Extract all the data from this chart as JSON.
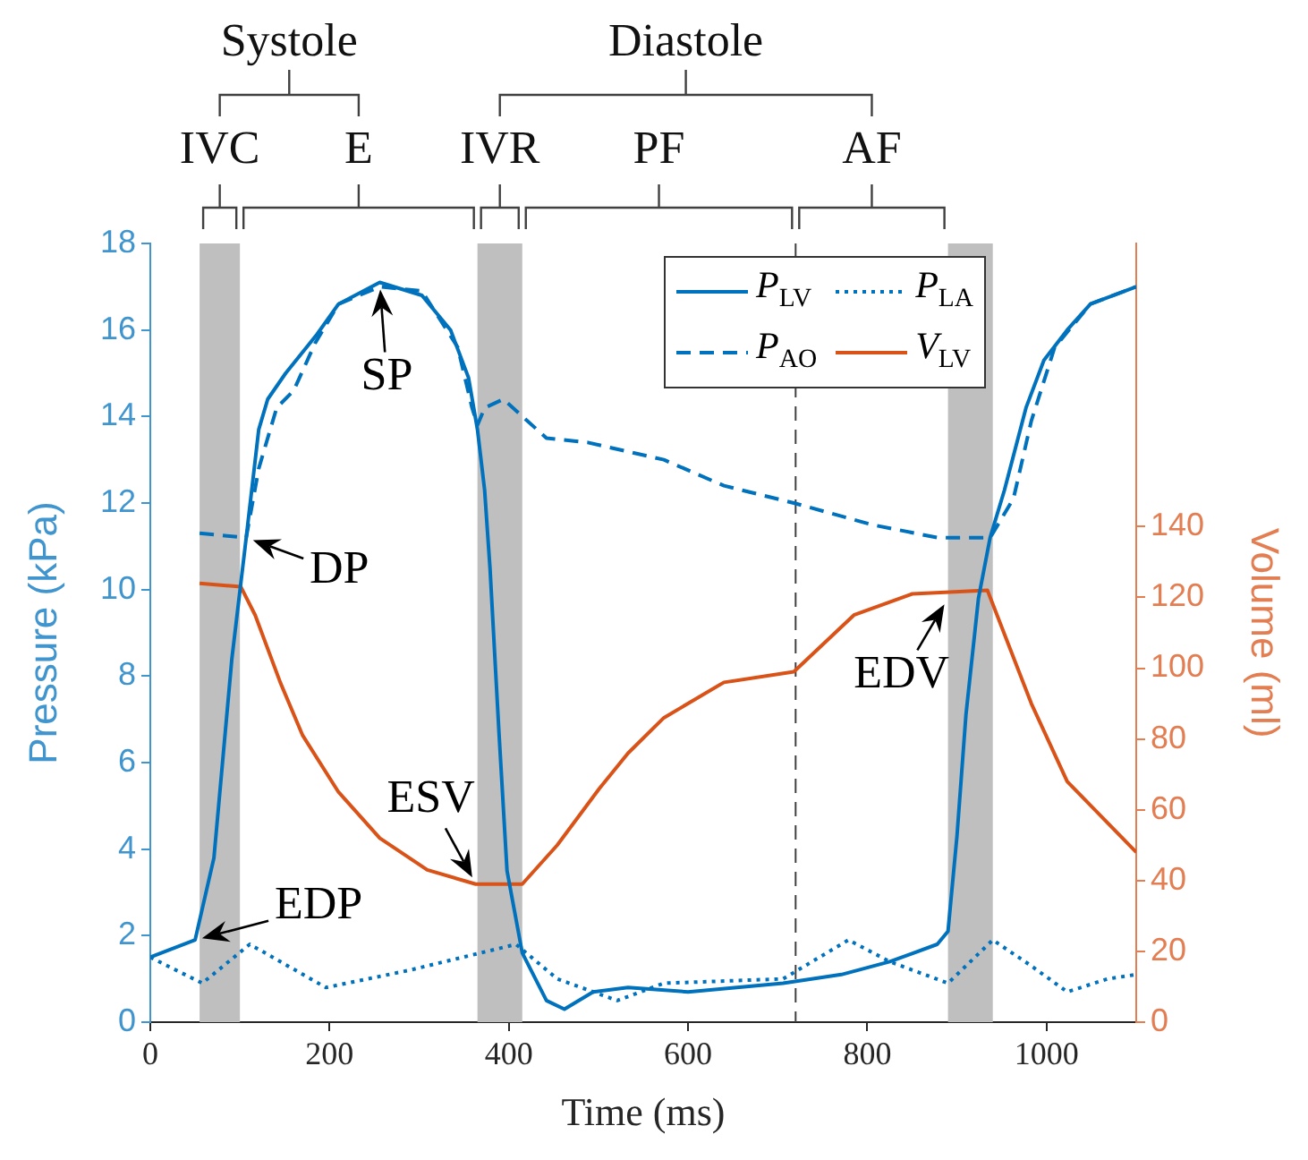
{
  "chart_data": {
    "type": "line",
    "xlabel": "Time (ms)",
    "ylabel": "Pressure (kPa)",
    "y2label": "Volume (ml)",
    "xlim": [
      0,
      1100
    ],
    "xticks": [
      0,
      200,
      400,
      600,
      800,
      1000
    ],
    "ylim": [
      0,
      18
    ],
    "yticks": [
      0,
      2,
      4,
      6,
      8,
      10,
      12,
      14,
      16,
      18
    ],
    "y2lim": [
      0,
      220
    ],
    "y2ticks": [
      0,
      20,
      40,
      60,
      80,
      100,
      120,
      140
    ],
    "legend": "top right",
    "series": [
      {
        "name": "P$_{LV}$",
        "color": "#0072bd",
        "line_style": "solid",
        "x": [
          0,
          50,
          71,
          91,
          107,
          121,
          131,
          151,
          186,
          210,
          256,
          303,
          335,
          355,
          365,
          373,
          379,
          389,
          398,
          415,
          442,
          462,
          494,
          533,
          600,
          706,
          771,
          825,
          878,
          890,
          900,
          910,
          924,
          937,
          953,
          977,
          997,
          1023,
          1049,
          1100
        ],
        "values": [
          1.5,
          1.9,
          3.8,
          8.4,
          11.2,
          13.7,
          14.4,
          15.0,
          15.9,
          16.6,
          17.1,
          16.8,
          16.0,
          14.9,
          13.7,
          12.3,
          10.5,
          6.7,
          3.5,
          1.6,
          0.5,
          0.3,
          0.7,
          0.8,
          0.7,
          0.9,
          1.1,
          1.4,
          1.8,
          2.1,
          4.3,
          7.1,
          9.8,
          11.2,
          12.3,
          14.2,
          15.3,
          16.0,
          16.6,
          17.0
        ]
      },
      {
        "name": "P$_{LA}$",
        "color": "#0072bd",
        "line_style": "dotted",
        "x": [
          0,
          58,
          111,
          145,
          196,
          289,
          408,
          454,
          521,
          573,
          706,
          779,
          825,
          890,
          940,
          983,
          1023,
          1068,
          1100
        ],
        "values": [
          1.5,
          0.9,
          1.8,
          1.4,
          0.8,
          1.2,
          1.8,
          1.0,
          0.5,
          0.9,
          1.0,
          1.9,
          1.4,
          0.9,
          1.9,
          1.3,
          0.7,
          1.0,
          1.1
        ]
      },
      {
        "name": "P$_{AO}$",
        "color": "#0072bd",
        "line_style": "dashed",
        "x": [
          55,
          107,
          121,
          141,
          160,
          184,
          210,
          256,
          303,
          343,
          359,
          365,
          373,
          394,
          442,
          488,
          573,
          640,
          718,
          805,
          878,
          937,
          963,
          983,
          1009,
          1049,
          1100
        ],
        "values": [
          11.3,
          11.2,
          12.8,
          14.2,
          14.6,
          15.7,
          16.6,
          17.0,
          16.9,
          15.6,
          14.2,
          13.8,
          14.2,
          14.4,
          13.5,
          13.4,
          13.0,
          12.4,
          12.0,
          11.5,
          11.2,
          11.2,
          12.1,
          13.9,
          15.6,
          16.6,
          17.0
        ]
      },
      {
        "name": "V$_{LV}$",
        "color": "#d95319",
        "line_style": "solid",
        "axis": "y2",
        "x": [
          55,
          101,
          117,
          145,
          170,
          210,
          256,
          309,
          363,
          415,
          454,
          501,
          533,
          573,
          640,
          718,
          785,
          850,
          934,
          983,
          1023,
          1100
        ],
        "values": [
          124,
          123,
          115,
          96,
          81,
          65,
          52,
          43,
          39,
          39,
          50,
          66,
          76,
          86,
          96,
          99,
          115,
          121,
          122,
          90,
          68,
          48
        ]
      }
    ],
    "bands": [
      {
        "axis": "x",
        "from": 55,
        "to": 100,
        "label": "IVC",
        "color": "#bfbfbf"
      },
      {
        "axis": "x",
        "from": 365,
        "to": 415,
        "label": "IVR",
        "color": "#bfbfbf"
      },
      {
        "axis": "x",
        "from": 890,
        "to": 940,
        "color": "#bfbfbf"
      }
    ],
    "ref_lines": [
      {
        "axis": "x",
        "value": 720,
        "color": "#404040",
        "line_style": "dashed"
      }
    ],
    "annotations": [
      {
        "text": "SP",
        "x": 256,
        "y": 17.1
      },
      {
        "text": "DP",
        "x": 107,
        "y": 11.2
      },
      {
        "text": "EDP",
        "x": 50,
        "y": 1.9
      },
      {
        "text": "ESV",
        "x": 363,
        "y": 3.2
      },
      {
        "text": "EDV",
        "x": 890,
        "y": 9.8
      },
      "Systole",
      "Diastole",
      "E",
      "PF",
      "AF"
    ]
  }
}
